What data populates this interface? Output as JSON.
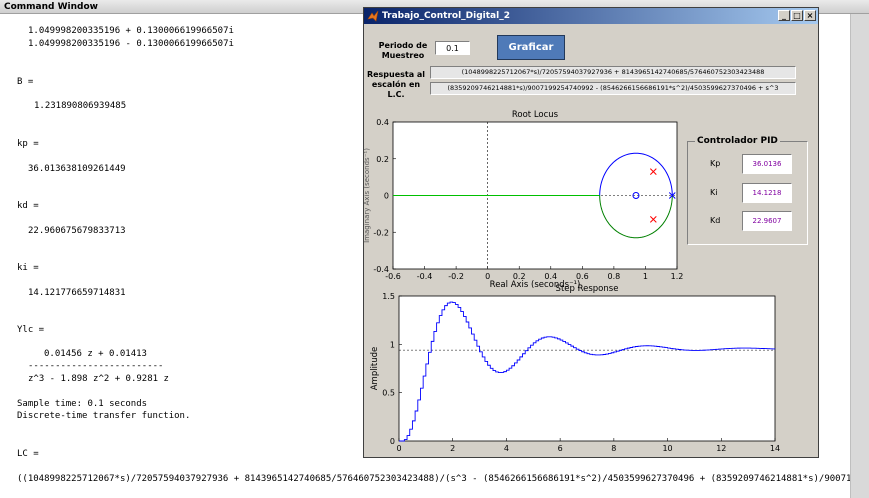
{
  "command_window": {
    "title": "Command Window",
    "lines": [
      "1.049998200335196 + 0.130006619966507i",
      "1.049998200335196 - 0.130006619966507i",
      "B =",
      "1.231890806939485",
      "kp =",
      "36.013638109261449",
      "kd =",
      "22.960675679833713",
      "ki =",
      "14.121776659714831",
      "Ylc =",
      "0.01456 z + 0.01413",
      "-------------------------",
      "z^3 - 1.898 z^2 + 0.9281 z",
      "Sample time: 0.1 seconds",
      "Discrete-time transfer function.",
      "LC =",
      "((1048998225712067*s)/72057594037927936 + 8143965142740685/576460752303423488)/(s^3 - (8546266156686191*s^2)/4503599627370496 + (8359209746214881*s)/900719"
    ]
  },
  "figure": {
    "title": "Trabajo_Control_Digital_2",
    "window_buttons": [
      "_",
      "□",
      "×"
    ],
    "periodo_label": "Periodo de Muestreo",
    "periodo_value": "0.1",
    "graficar_label": "Graficar",
    "respuesta_label": "Respuesta al escalón en L.C.",
    "tf_numerator": "(1048998225712067*s)/72057594037927936 + 8143965142740685/576460752303423488",
    "tf_denominator": "(8359209746214881*s)/9007199254740992 - (8546266156686191*s^2)/4503599627370496 + s^3",
    "pid": {
      "title": "Controlador PID",
      "kp_label": "Kp",
      "kp_value": "36.0136",
      "ki_label": "Ki",
      "ki_value": "14.1218",
      "kd_label": "Kd",
      "kd_value": "22.9607"
    },
    "colors": {
      "accent_button": "#4f7ab8",
      "pid_value_text": "#8000a0",
      "titlebar": "#0a246a"
    }
  },
  "chart_data": [
    {
      "type": "line",
      "title": "Root Locus",
      "xlabel": "Real Axis (seconds⁻¹)",
      "ylabel": "Imaginary Axis (seconds⁻¹)",
      "xlim": [
        -0.6,
        1.2
      ],
      "ylim": [
        -0.4,
        0.4
      ],
      "x_ticks": [
        "-0.6",
        "-0.4",
        "-0.2",
        "0",
        "0.2",
        "0.4",
        "0.6",
        "0.8",
        "1",
        "1.2"
      ],
      "y_ticks": [
        "0.4",
        "0.2",
        "0",
        "-0.2",
        "-0.4"
      ],
      "series": [
        {
          "color": "#0000ff",
          "center": [
            0.94,
            0.0
          ],
          "radius": 0.23,
          "half": "upper"
        },
        {
          "color": "#008000",
          "center": [
            0.94,
            0.0
          ],
          "radius": 0.23,
          "half": "lower"
        },
        {
          "color": "#00c000",
          "segment": [
            [
              -0.6,
              0.0
            ],
            [
              0.71,
              0.0
            ]
          ]
        }
      ],
      "markers": {
        "poles": [
          [
            1.05,
            0.13
          ],
          [
            1.05,
            -0.13
          ]
        ],
        "pole_color": "#ff0000",
        "zero": [
          0.94,
          0.0
        ],
        "zero_color": "#0000ff",
        "origin_pole": [
          1.17,
          0.0
        ]
      }
    },
    {
      "type": "line",
      "title": "Step Response",
      "xlabel": "",
      "ylabel": "Amplitude",
      "xlim": [
        0,
        14
      ],
      "ylim": [
        0,
        1.5
      ],
      "x_ticks": [
        "0",
        "2",
        "4",
        "6",
        "8",
        "10",
        "12",
        "14"
      ],
      "y_ticks": [
        "1.5",
        "1",
        "0.5",
        "0"
      ],
      "final_value": 0.94,
      "sample_time": 0.1,
      "tf": {
        "num": [
          0.01456,
          0.01413
        ],
        "den": [
          1,
          -1.898,
          0.9281,
          0
        ]
      },
      "color": "#0000ff"
    }
  ]
}
